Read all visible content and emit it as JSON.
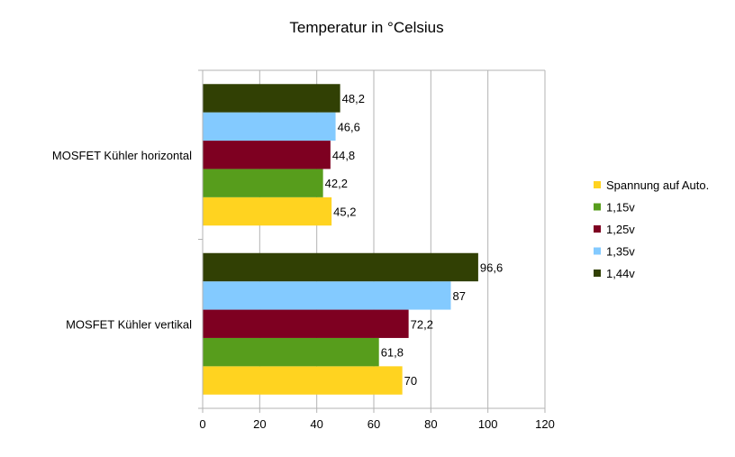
{
  "chart_data": {
    "type": "bar",
    "orientation": "horizontal",
    "title": "Temperatur in °Celsius",
    "xlabel": "",
    "ylabel": "",
    "xlim": [
      0,
      120
    ],
    "x_ticks": [
      0,
      20,
      40,
      60,
      80,
      100,
      120
    ],
    "x_tick_labels": [
      "0",
      "20",
      "40",
      "60",
      "80",
      "100",
      "120"
    ],
    "grid": true,
    "legend_position": "right",
    "categories": [
      "MOSFET Kühler horizontal",
      "MOSFET Kühler vertikal"
    ],
    "series": [
      {
        "name": "Spannung auf Auto.",
        "color": "#ffd320",
        "values": [
          45.2,
          70
        ],
        "labels": [
          "45,2",
          "70"
        ]
      },
      {
        "name": "1,15v",
        "color": "#579d1c",
        "values": [
          42.2,
          61.8
        ],
        "labels": [
          "42,2",
          "61,8"
        ]
      },
      {
        "name": "1,25v",
        "color": "#7e0021",
        "values": [
          44.8,
          72.2
        ],
        "labels": [
          "44,8",
          "72,2"
        ]
      },
      {
        "name": "1,35v",
        "color": "#83caff",
        "values": [
          46.6,
          87
        ],
        "labels": [
          "46,6",
          "87"
        ]
      },
      {
        "name": "1,44v",
        "color": "#314004",
        "values": [
          48.2,
          96.6
        ],
        "labels": [
          "48,2",
          "96,6"
        ]
      }
    ]
  }
}
